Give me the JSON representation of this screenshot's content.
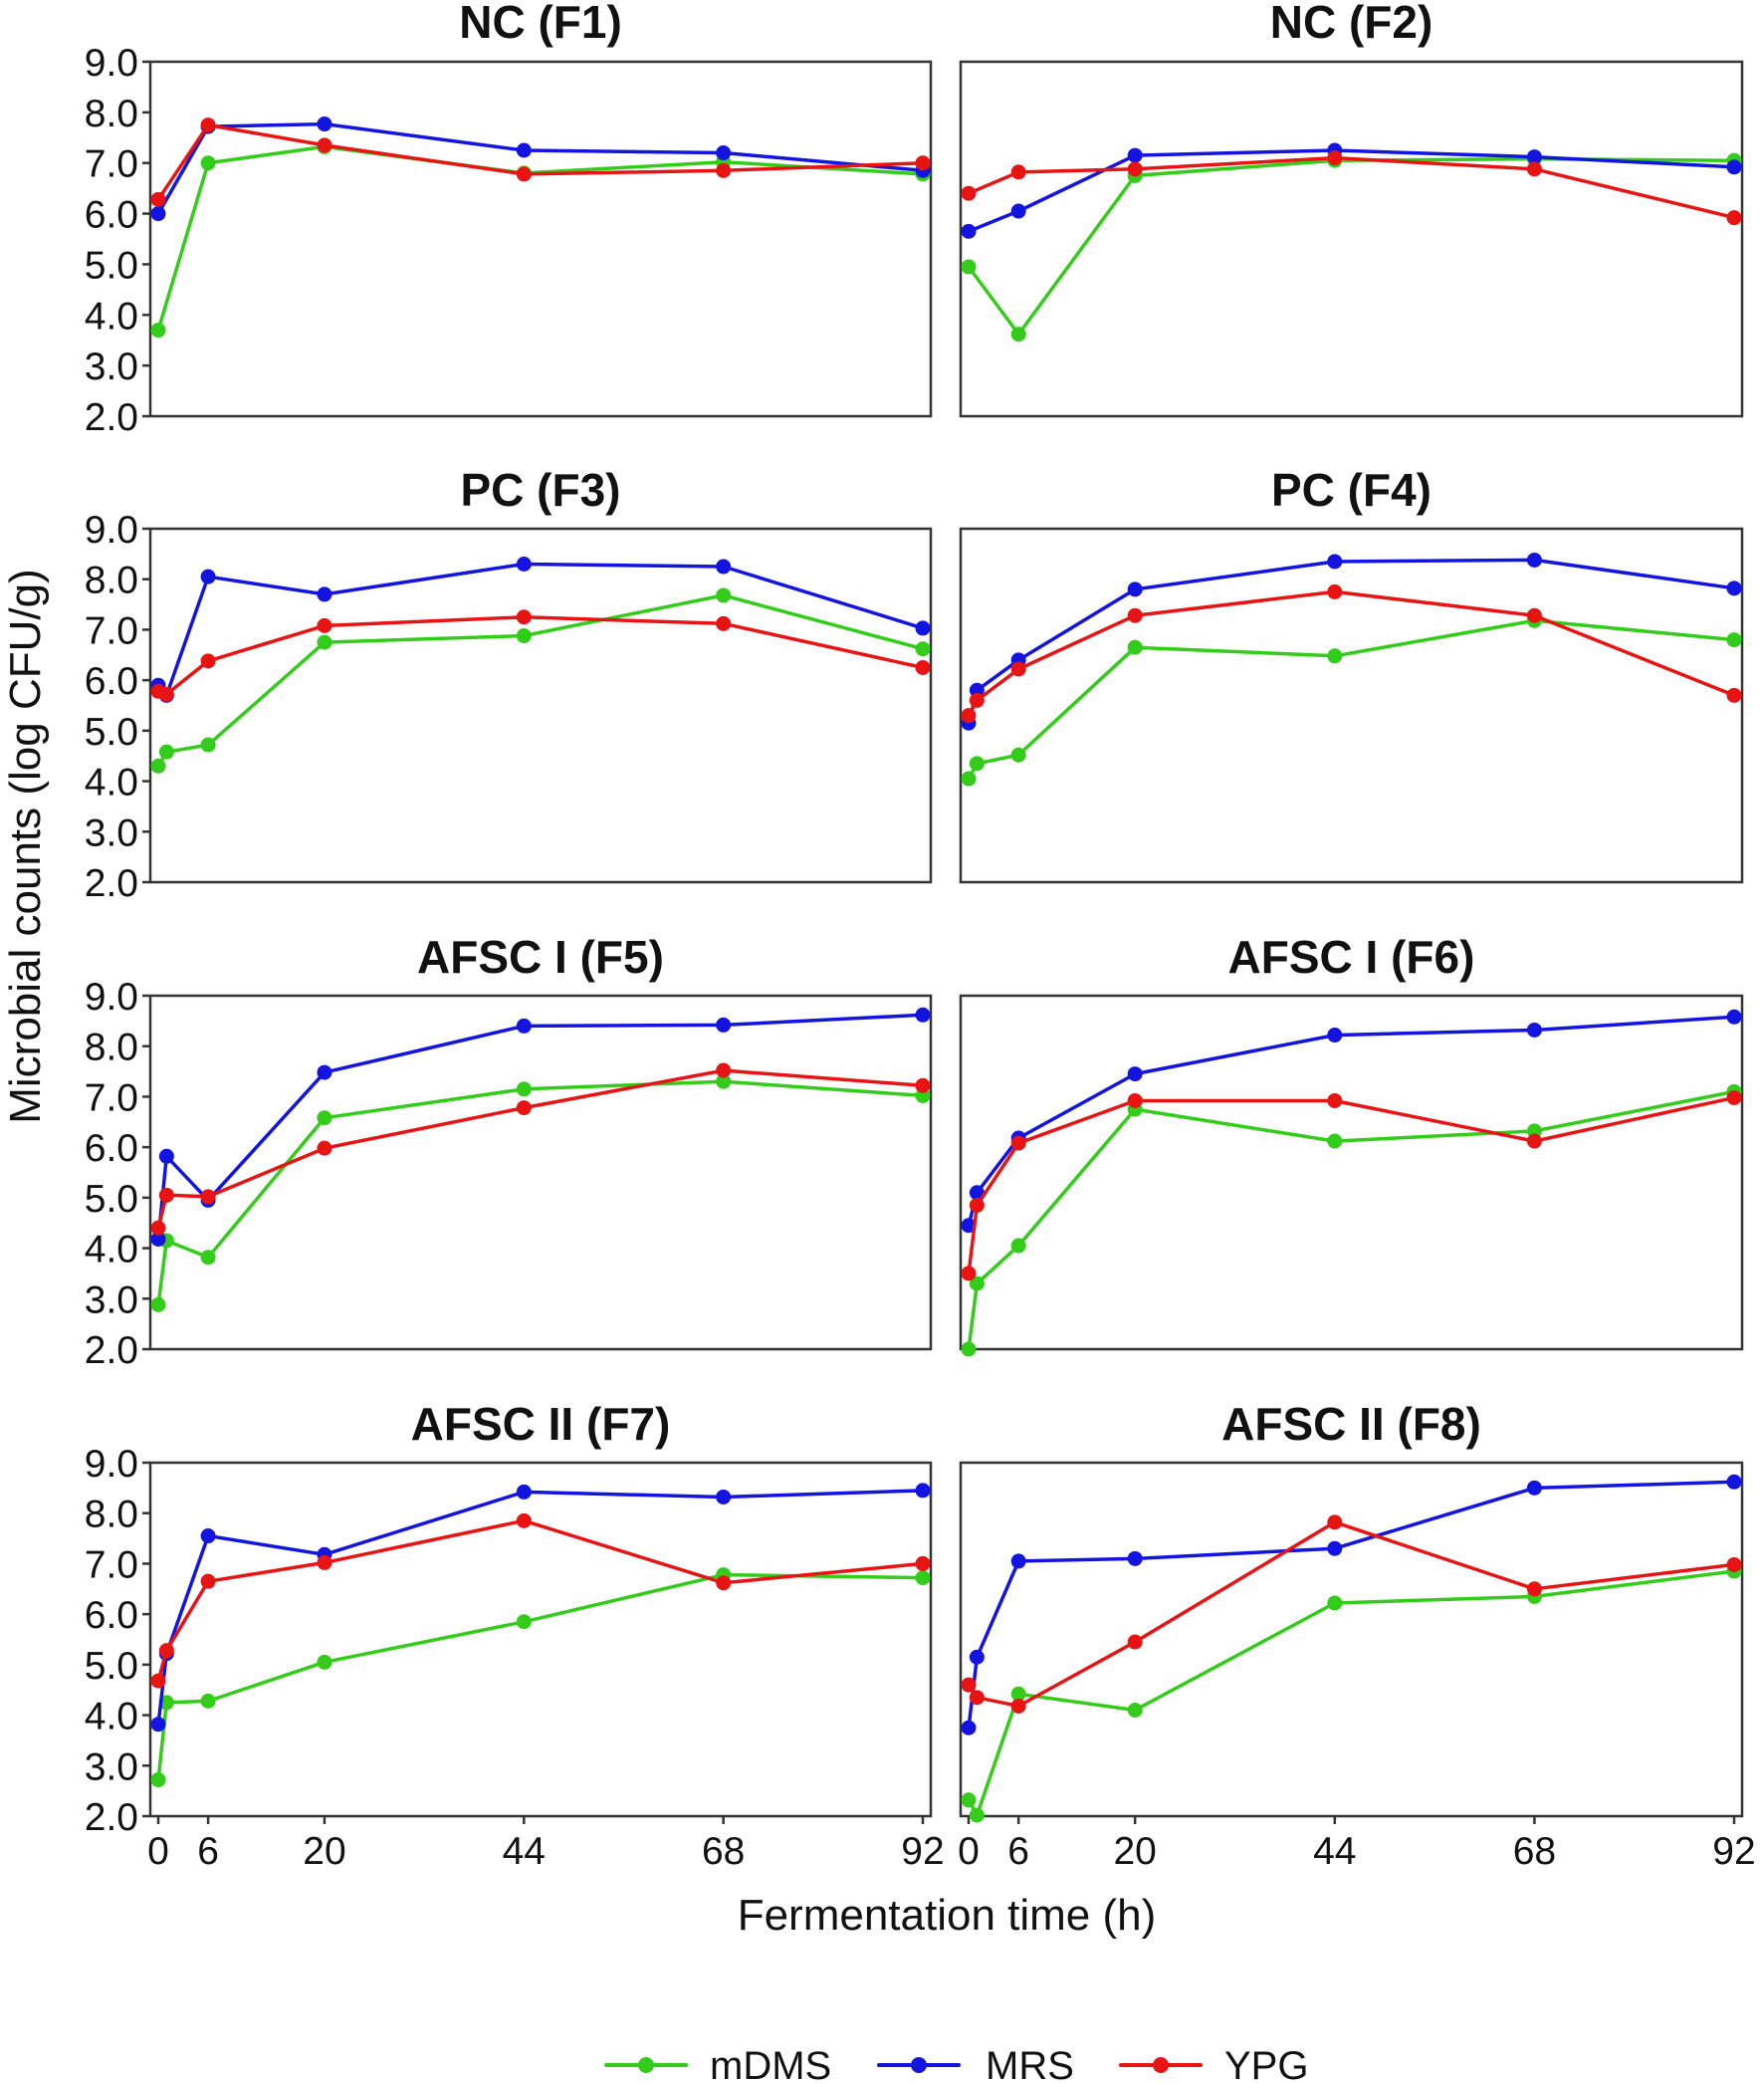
{
  "chart_data": {
    "type": "line",
    "ylabel": "Microbial counts (log CFU/g)",
    "xlabel": "Fermentation time (h)",
    "ylim": [
      2.0,
      9.0
    ],
    "xlim": [
      0,
      92
    ],
    "grid": false,
    "legend_position": "bottom",
    "yticks": [
      "2.0",
      "3.0",
      "4.0",
      "5.0",
      "6.0",
      "7.0",
      "8.0",
      "9.0"
    ],
    "xticks": [
      "0",
      "6",
      "20",
      "44",
      "68",
      "92"
    ],
    "x": [
      0,
      1,
      6,
      20,
      44,
      68,
      92
    ],
    "series_styles": [
      {
        "name": "mDMS",
        "color": "#33cc1a"
      },
      {
        "name": "MRS",
        "color": "#1414e0"
      },
      {
        "name": "YPG",
        "color": "#e81414"
      }
    ],
    "panels": [
      {
        "title": "NC (F1)",
        "series": [
          {
            "name": "mDMS",
            "x": [
              0,
              6,
              20,
              44,
              68,
              92
            ],
            "values": [
              3.7,
              7.0,
              7.32,
              6.8,
              7.02,
              6.78
            ]
          },
          {
            "name": "MRS",
            "x": [
              0,
              6,
              20,
              44,
              68,
              92
            ],
            "values": [
              6.0,
              7.72,
              7.77,
              7.25,
              7.2,
              6.85
            ]
          },
          {
            "name": "YPG",
            "x": [
              0,
              6,
              20,
              44,
              68,
              92
            ],
            "values": [
              6.28,
              7.75,
              7.35,
              6.78,
              6.85,
              7.0
            ]
          }
        ]
      },
      {
        "title": "NC (F2)",
        "series": [
          {
            "name": "mDMS",
            "x": [
              0,
              6,
              20,
              44,
              68,
              92
            ],
            "values": [
              4.95,
              3.62,
              6.75,
              7.05,
              7.08,
              7.05
            ]
          },
          {
            "name": "MRS",
            "x": [
              0,
              6,
              20,
              44,
              68,
              92
            ],
            "values": [
              5.65,
              6.05,
              7.15,
              7.25,
              7.12,
              6.92
            ]
          },
          {
            "name": "YPG",
            "x": [
              0,
              6,
              20,
              44,
              68,
              92
            ],
            "values": [
              6.4,
              6.82,
              6.88,
              7.1,
              6.88,
              5.92
            ]
          }
        ]
      },
      {
        "title": "PC (F3)",
        "series": [
          {
            "name": "mDMS",
            "x": [
              0,
              1,
              6,
              20,
              44,
              68,
              92
            ],
            "values": [
              4.3,
              4.58,
              4.72,
              6.75,
              6.88,
              7.68,
              6.62
            ]
          },
          {
            "name": "MRS",
            "x": [
              0,
              1,
              6,
              20,
              44,
              68,
              92
            ],
            "values": [
              5.9,
              5.7,
              8.05,
              7.7,
              8.3,
              8.25,
              7.03
            ]
          },
          {
            "name": "YPG",
            "x": [
              0,
              1,
              6,
              20,
              44,
              68,
              92
            ],
            "values": [
              5.78,
              5.72,
              6.38,
              7.08,
              7.25,
              7.12,
              6.25
            ]
          }
        ]
      },
      {
        "title": "PC (F4)",
        "series": [
          {
            "name": "mDMS",
            "x": [
              0,
              1,
              6,
              20,
              44,
              68,
              92
            ],
            "values": [
              4.05,
              4.35,
              4.52,
              6.65,
              6.48,
              7.18,
              6.8
            ]
          },
          {
            "name": "MRS",
            "x": [
              0,
              1,
              6,
              20,
              44,
              68,
              92
            ],
            "values": [
              5.15,
              5.8,
              6.4,
              7.8,
              8.35,
              8.38,
              7.82
            ]
          },
          {
            "name": "YPG",
            "x": [
              0,
              1,
              6,
              20,
              44,
              68,
              92
            ],
            "values": [
              5.3,
              5.6,
              6.22,
              7.28,
              7.75,
              7.28,
              5.7
            ]
          }
        ]
      },
      {
        "title": "AFSC I (F5)",
        "series": [
          {
            "name": "mDMS",
            "x": [
              0,
              1,
              6,
              20,
              44,
              68,
              92
            ],
            "values": [
              2.88,
              4.15,
              3.82,
              6.58,
              7.15,
              7.3,
              7.02
            ]
          },
          {
            "name": "MRS",
            "x": [
              0,
              1,
              6,
              20,
              44,
              68,
              92
            ],
            "values": [
              4.18,
              5.82,
              4.95,
              7.48,
              8.4,
              8.42,
              8.62
            ]
          },
          {
            "name": "YPG",
            "x": [
              0,
              1,
              6,
              20,
              44,
              68,
              92
            ],
            "values": [
              4.4,
              5.05,
              5.02,
              5.98,
              6.78,
              7.52,
              7.22
            ]
          }
        ]
      },
      {
        "title": "AFSC I (F6)",
        "series": [
          {
            "name": "mDMS",
            "x": [
              0,
              1,
              6,
              20,
              44,
              68,
              92
            ],
            "values": [
              2.0,
              3.3,
              4.05,
              6.75,
              6.12,
              6.32,
              7.1
            ]
          },
          {
            "name": "MRS",
            "x": [
              0,
              1,
              6,
              20,
              44,
              68,
              92
            ],
            "values": [
              4.45,
              5.1,
              6.18,
              7.45,
              8.22,
              8.32,
              8.58
            ]
          },
          {
            "name": "YPG",
            "x": [
              0,
              1,
              6,
              20,
              44,
              68,
              92
            ],
            "values": [
              3.5,
              4.85,
              6.08,
              6.92,
              6.92,
              6.12,
              6.98
            ]
          }
        ]
      },
      {
        "title": "AFSC II (F7)",
        "series": [
          {
            "name": "mDMS",
            "x": [
              0,
              1,
              6,
              20,
              44,
              68,
              92
            ],
            "values": [
              2.72,
              4.25,
              4.28,
              5.05,
              5.85,
              6.78,
              6.72
            ]
          },
          {
            "name": "MRS",
            "x": [
              0,
              1,
              6,
              20,
              44,
              68,
              92
            ],
            "values": [
              3.82,
              5.22,
              7.55,
              7.18,
              8.42,
              8.32,
              8.45
            ]
          },
          {
            "name": "YPG",
            "x": [
              0,
              1,
              6,
              20,
              44,
              68,
              92
            ],
            "values": [
              4.68,
              5.28,
              6.65,
              7.02,
              7.85,
              6.62,
              7.0
            ]
          }
        ]
      },
      {
        "title": "AFSC II (F8)",
        "series": [
          {
            "name": "mDMS",
            "x": [
              0,
              1,
              6,
              20,
              44,
              68,
              92
            ],
            "values": [
              2.32,
              2.02,
              4.42,
              4.1,
              6.22,
              6.35,
              6.85
            ]
          },
          {
            "name": "MRS",
            "x": [
              0,
              1,
              6,
              20,
              44,
              68,
              92
            ],
            "values": [
              3.75,
              5.15,
              7.05,
              7.1,
              7.3,
              8.5,
              8.62
            ]
          },
          {
            "name": "YPG",
            "x": [
              0,
              1,
              6,
              20,
              44,
              68,
              92
            ],
            "values": [
              4.6,
              4.35,
              4.18,
              5.45,
              7.82,
              6.5,
              6.98
            ]
          }
        ]
      }
    ]
  }
}
